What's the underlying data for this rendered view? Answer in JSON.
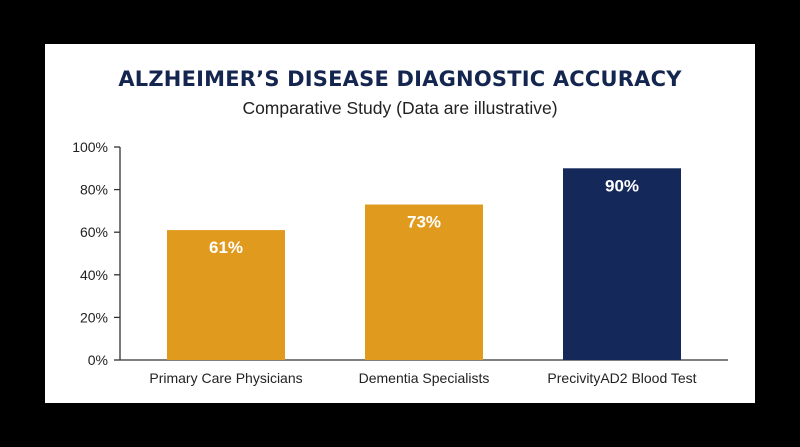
{
  "chart_data": {
    "type": "bar",
    "title": "ALZHEIMER’S DISEASE DIAGNOSTIC ACCURACY",
    "subtitle": "Comparative Study (Data are illustrative)",
    "categories": [
      "Primary Care Physicians",
      "Dementia Specialists",
      "PrecivityAD2 Blood Test"
    ],
    "values": [
      61,
      73,
      90
    ],
    "data_labels": [
      "61%",
      "73%",
      "90%"
    ],
    "colors": [
      "#e09a1e",
      "#e09a1e",
      "#14285a"
    ],
    "ylim": [
      0,
      100
    ],
    "yticks": [
      0,
      20,
      40,
      60,
      80,
      100
    ],
    "ytick_labels": [
      "0%",
      "20%",
      "40%",
      "60%",
      "80%",
      "100%"
    ],
    "xlabel": "",
    "ylabel": "",
    "grid": false,
    "legend": "none"
  }
}
